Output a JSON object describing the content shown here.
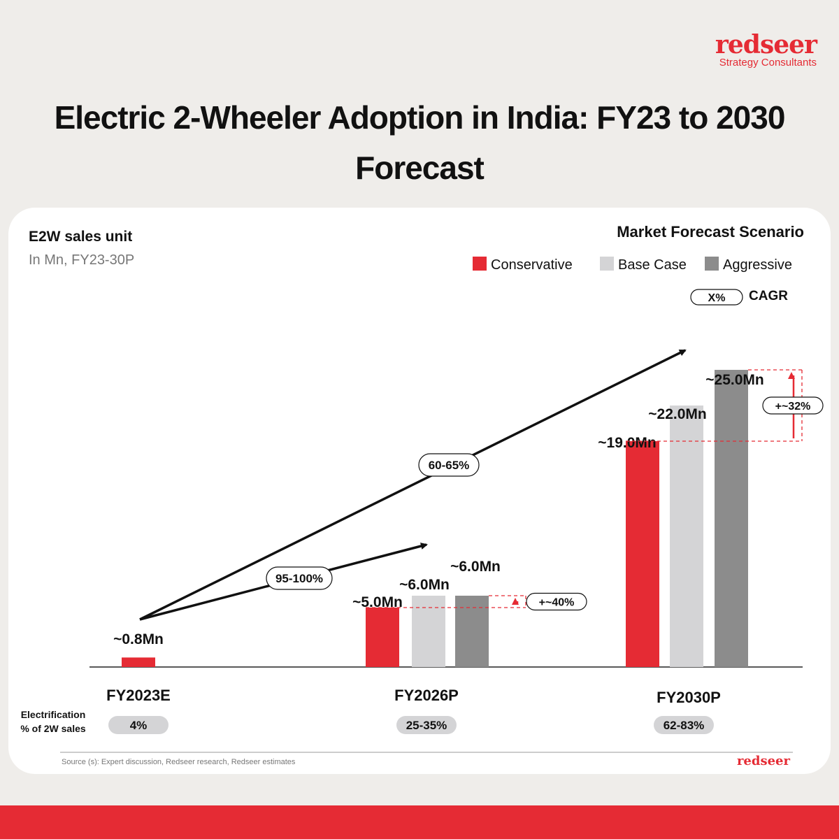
{
  "brand": {
    "name": "redseer",
    "tagline": "Strategy Consultants",
    "footer_logo": "redseer",
    "color": "#e52b34"
  },
  "title": "Electric 2-Wheeler Adoption in India: FY23 to 2030 Forecast",
  "chart_data": {
    "type": "bar",
    "subtitle": "E2W sales unit",
    "unit_note": "In Mn, FY23-30P",
    "legend_title": "Market Forecast Scenario",
    "categories": [
      "FY2023E",
      "FY2026P",
      "FY2030P"
    ],
    "series": [
      {
        "name": "Conservative",
        "color": "#e52b34",
        "values": [
          0.8,
          5.0,
          19.0
        ],
        "labels": [
          "~0.8Mn",
          "~5.0Mn",
          "~19.0Mn"
        ]
      },
      {
        "name": "Base Case",
        "color": "#d4d4d6",
        "values": [
          null,
          6.0,
          22.0
        ],
        "labels": [
          "",
          "~6.0Mn",
          "~22.0Mn"
        ]
      },
      {
        "name": "Aggressive",
        "color": "#8c8c8c",
        "values": [
          null,
          6.0,
          25.0
        ],
        "labels": [
          "",
          "~6.0Mn",
          "~25.0Mn"
        ]
      }
    ],
    "cagr_legend": {
      "badge": "X%",
      "label": "CAGR"
    },
    "cagr": [
      {
        "from": "FY2023E",
        "to": "FY2026P",
        "value": "95-100%"
      },
      {
        "from": "FY2023E",
        "to": "FY2030P",
        "value": "60-65%"
      }
    ],
    "uplift": [
      {
        "category": "FY2026P",
        "value": "+~40%"
      },
      {
        "category": "FY2030P",
        "value": "+~32%"
      }
    ],
    "electrification": {
      "label_line1": "Electrification",
      "label_line2": "% of 2W sales",
      "values": [
        "4%",
        "25-35%",
        "62-83%"
      ]
    },
    "ylim": [
      0,
      25
    ]
  },
  "source": "Source (s): Expert discussion, Redseer research, Redseer estimates"
}
